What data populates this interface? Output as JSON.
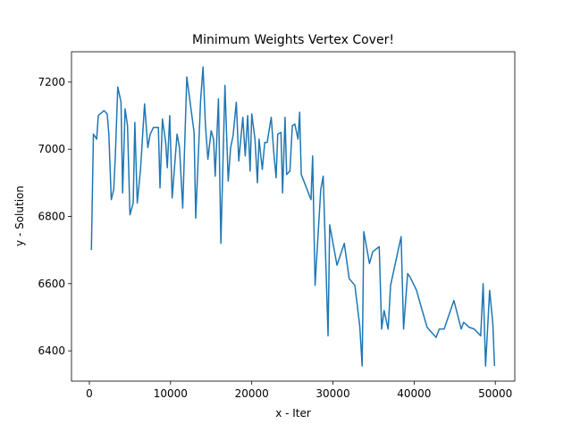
{
  "chart_data": {
    "type": "line",
    "title": "Minimum Weights Vertex Cover!",
    "xlabel": "x - Iter",
    "ylabel": "y - Solution",
    "x": [
      250,
      500,
      900,
      1100,
      1800,
      2200,
      2400,
      2700,
      3000,
      3200,
      3500,
      3900,
      4100,
      4400,
      4700,
      5000,
      5400,
      5600,
      5900,
      6300,
      6800,
      7200,
      7500,
      7900,
      8500,
      8700,
      9000,
      9400,
      9600,
      9900,
      10200,
      10800,
      11100,
      11500,
      12000,
      12900,
      13100,
      13700,
      14000,
      14300,
      14600,
      15000,
      15300,
      15500,
      15900,
      16200,
      16700,
      17100,
      17400,
      17700,
      18100,
      18400,
      18900,
      19200,
      19500,
      19800,
      20000,
      20400,
      20700,
      20900,
      21300,
      21600,
      21900,
      22400,
      22700,
      23000,
      23200,
      23600,
      23800,
      24100,
      24300,
      24700,
      25000,
      25300,
      25700,
      25900,
      26100,
      27300,
      27500,
      27800,
      28500,
      28800,
      29400,
      29600,
      30500,
      31400,
      32000,
      32700,
      33300,
      33600,
      33800,
      34500,
      34900,
      35700,
      36000,
      36300,
      36800,
      37100,
      38400,
      38700,
      39200,
      39500,
      40300,
      40700,
      41600,
      42700,
      43100,
      43700,
      44900,
      45800,
      46100,
      46800,
      47400,
      48200,
      48500,
      48800,
      49300,
      49700,
      49900
    ],
    "series": [
      {
        "name": "Solution",
        "color": "#1f77b4",
        "values": [
          6700,
          7045,
          7030,
          7100,
          7115,
          7105,
          7045,
          6850,
          6880,
          6980,
          7185,
          7140,
          6870,
          7120,
          7070,
          6805,
          6840,
          7080,
          6840,
          6940,
          7135,
          7005,
          7045,
          7065,
          7065,
          6885,
          7090,
          7020,
          6945,
          7100,
          6855,
          7045,
          7005,
          6825,
          7215,
          7050,
          6795,
          7145,
          7245,
          7070,
          6970,
          7055,
          7030,
          6920,
          7150,
          6720,
          7190,
          6905,
          7005,
          7040,
          7140,
          6965,
          7095,
          6980,
          7100,
          6935,
          7105,
          7030,
          6900,
          7030,
          6940,
          7020,
          7020,
          7095,
          6995,
          6915,
          7045,
          7050,
          6870,
          7095,
          6925,
          6935,
          7070,
          7075,
          7030,
          7110,
          6925,
          6850,
          6980,
          6595,
          6880,
          6920,
          6445,
          6775,
          6655,
          6720,
          6615,
          6595,
          6475,
          6355,
          6755,
          6660,
          6695,
          6710,
          6465,
          6520,
          6465,
          6595,
          6740,
          6465,
          6630,
          6620,
          6580,
          6545,
          6470,
          6440,
          6465,
          6465,
          6550,
          6465,
          6485,
          6470,
          6465,
          6445,
          6600,
          6355,
          6580,
          6480,
          6355
        ]
      }
    ],
    "xlim": [
      -2200,
      52400
    ],
    "xticks": [
      0,
      10000,
      20000,
      30000,
      40000,
      50000
    ],
    "ylim": [
      6310,
      7290
    ],
    "yticks": [
      6400,
      6600,
      6800,
      7000,
      7200
    ]
  }
}
